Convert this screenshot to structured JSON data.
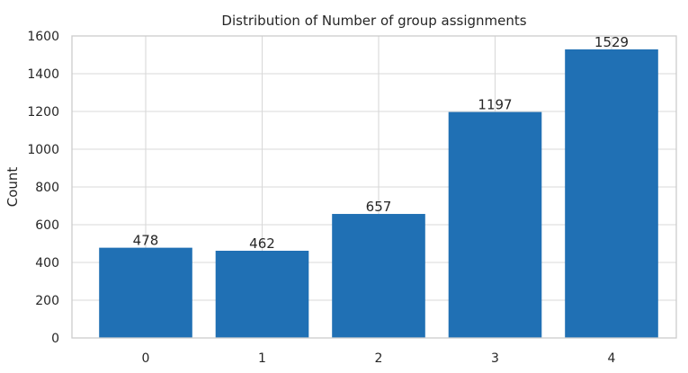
{
  "chart_data": {
    "type": "bar",
    "title": "Distribution of Number of group assignments",
    "xlabel": "",
    "ylabel": "Count",
    "categories": [
      "0",
      "1",
      "2",
      "3",
      "4"
    ],
    "values": [
      478,
      462,
      657,
      1197,
      1529
    ],
    "data_labels": [
      "478",
      "462",
      "657",
      "1197",
      "1529"
    ],
    "ylim": [
      0,
      1600
    ],
    "yticks": [
      0,
      200,
      400,
      600,
      800,
      1000,
      1200,
      1400,
      1600
    ],
    "ytick_labels": [
      "0",
      "200",
      "400",
      "600",
      "800",
      "1000",
      "1200",
      "1400",
      "1600"
    ],
    "grid": true,
    "bar_color": "#2070b4"
  }
}
